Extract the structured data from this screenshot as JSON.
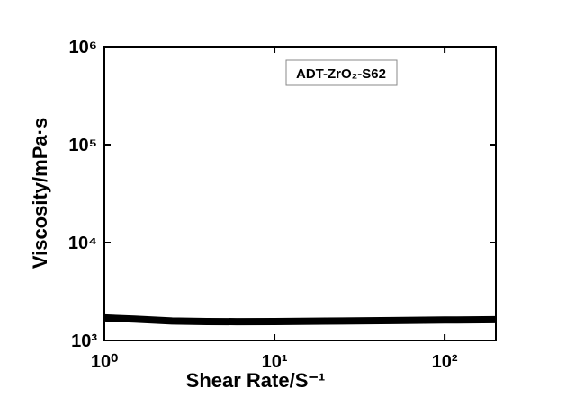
{
  "chart_data": {
    "type": "line",
    "x_label": "Shear Rate/S⁻¹",
    "y_label": "Viscosity/mPa·s",
    "x": [
      1,
      1.5,
      2.5,
      4,
      6,
      10,
      20,
      50,
      100,
      200
    ],
    "series": [
      {
        "name": "ADT-ZrO₂-S62",
        "color": "#000000",
        "values": [
          1700,
          1650,
          1580,
          1560,
          1555,
          1560,
          1575,
          1595,
          1615,
          1630
        ]
      }
    ],
    "xlog": true,
    "ylog": true,
    "xlim": [
      1,
      200
    ],
    "ylim": [
      1000,
      1000000
    ],
    "xticks": [
      {
        "value": 1,
        "label": "10⁰"
      },
      {
        "value": 10,
        "label": "10¹"
      },
      {
        "value": 100,
        "label": "10²"
      }
    ],
    "yticks": [
      {
        "value": 1000,
        "label": "10³"
      },
      {
        "value": 10000,
        "label": "10⁴"
      },
      {
        "value": 100000,
        "label": "10⁵"
      },
      {
        "value": 1000000,
        "label": "10⁶"
      }
    ]
  }
}
